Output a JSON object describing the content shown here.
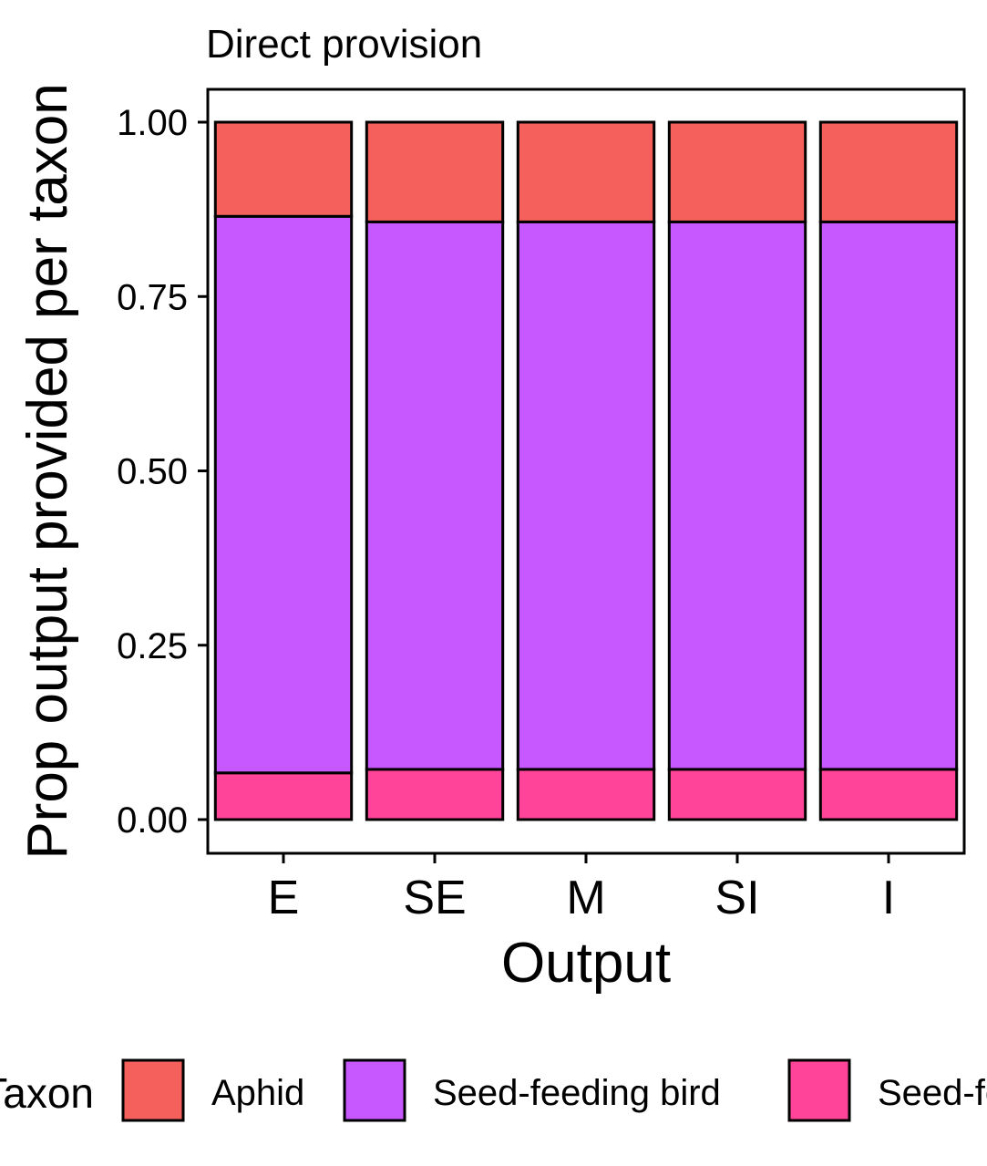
{
  "chart_data": {
    "type": "bar",
    "stacked": true,
    "title": "Direct provision",
    "xlabel": "Output",
    "ylabel": "Prop output provided per taxon",
    "categories": [
      "E",
      "SE",
      "M",
      "SI",
      "I"
    ],
    "ylim": [
      0,
      1
    ],
    "yticks": [
      "0.00",
      "0.25",
      "0.50",
      "0.75",
      "1.00"
    ],
    "ytick_values": [
      0,
      0.25,
      0.5,
      0.75,
      1.0
    ],
    "grid": false,
    "legend_position": "bottom",
    "legend_title": "Taxon",
    "series": [
      {
        "name": "Seed-feeding insect",
        "color": "#FF4499",
        "values": [
          0.067,
          0.072,
          0.072,
          0.072,
          0.072
        ]
      },
      {
        "name": "Seed-feeding bird",
        "color": "#C757FF",
        "values": [
          0.798,
          0.785,
          0.785,
          0.785,
          0.785
        ]
      },
      {
        "name": "Aphid",
        "color": "#F5605C",
        "values": [
          0.135,
          0.143,
          0.143,
          0.143,
          0.143
        ]
      }
    ],
    "legend_order": [
      "Aphid",
      "Seed-feeding bird",
      "Seed-feeding insect"
    ]
  }
}
